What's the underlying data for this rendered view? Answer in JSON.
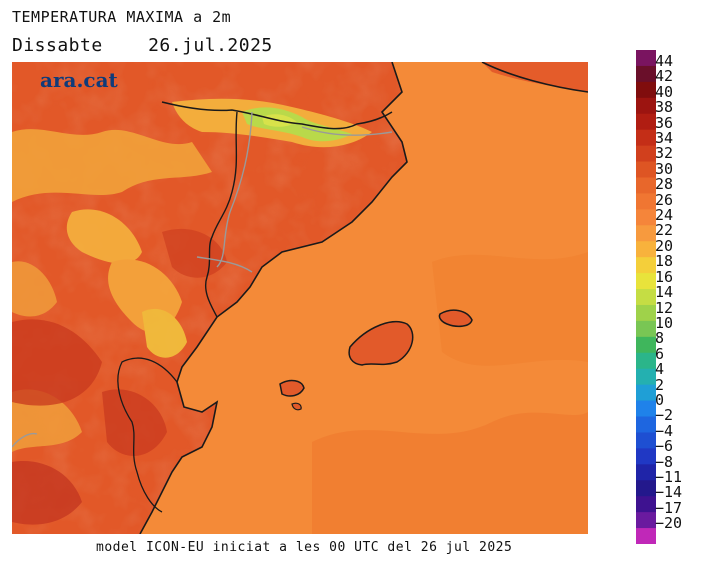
{
  "header": {
    "title": "TEMPERATURA MAXIMA a 2m",
    "day": "Dissabte",
    "date": "26.jul.2025"
  },
  "map": {
    "brand": "ara.cat",
    "description_colors": {
      "sea": "#f48a38",
      "land_warm": "#e55a2b",
      "land_hot": "#cc3e22",
      "mountain_cool": "#f4a83c",
      "peaks": "#b6d84a",
      "coast_line": "#1a1a1a",
      "border_line": "#9a9a9a"
    }
  },
  "footer": {
    "text": "model ICON-EU iniciat a les 00 UTC del 26 jul 2025"
  },
  "legend": {
    "labels": [
      "44",
      "42",
      "40",
      "38",
      "36",
      "34",
      "32",
      "30",
      "28",
      "26",
      "24",
      "22",
      "20",
      "18",
      "16",
      "14",
      "12",
      "10",
      "8",
      "6",
      "4",
      "2",
      "0",
      "−2",
      "−4",
      "−6",
      "−8",
      "−11",
      "−14",
      "−17",
      "−20"
    ],
    "colors": [
      "#7a1460",
      "#6a0f2a",
      "#800d0d",
      "#9c1410",
      "#b01d12",
      "#c42e17",
      "#d1401d",
      "#de5523",
      "#e8672b",
      "#f07632",
      "#f5853a",
      "#f79a3e",
      "#f8b23c",
      "#f4cf3a",
      "#e8e33b",
      "#c5dd44",
      "#9fd24a",
      "#79c654",
      "#3fb65c",
      "#2bb58a",
      "#24b0b0",
      "#1f9fd6",
      "#1f82ea",
      "#1e66e0",
      "#1e4fd2",
      "#2038c4",
      "#1f24a8",
      "#23188c",
      "#3e1290",
      "#6a1a9f",
      "#c028b8"
    ]
  }
}
